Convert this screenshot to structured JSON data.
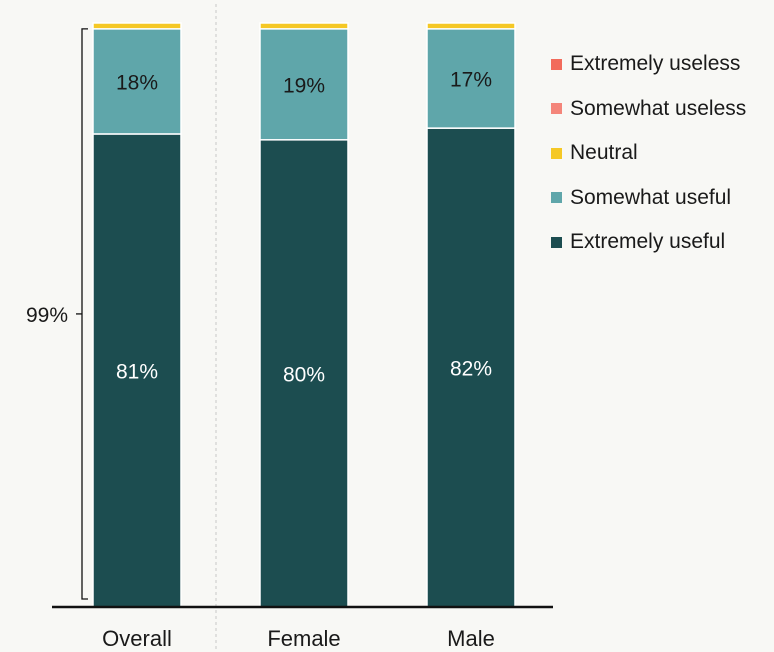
{
  "chart_data": {
    "type": "bar",
    "stacked": true,
    "orientation": "vertical",
    "categories": [
      "Overall",
      "Female",
      "Male"
    ],
    "ylim": [
      0,
      100
    ],
    "grid": false,
    "legend_position": "top-right",
    "series": [
      {
        "name": "Extremely useless",
        "color": "#f26b5b",
        "values": [
          0,
          0,
          0
        ],
        "labels": [
          "",
          "",
          ""
        ]
      },
      {
        "name": "Somewhat useless",
        "color": "#f4857a",
        "values": [
          0,
          0,
          0
        ],
        "labels": [
          "",
          "",
          ""
        ]
      },
      {
        "name": "Neutral",
        "color": "#f5c825",
        "values": [
          1,
          1,
          1
        ],
        "labels": [
          "",
          "",
          ""
        ]
      },
      {
        "name": "Somewhat useful",
        "color": "#5fa6aa",
        "values": [
          18,
          19,
          17
        ],
        "labels": [
          "18%",
          "19%",
          "17%"
        ]
      },
      {
        "name": "Extremely useful",
        "color": "#1c4d50",
        "values": [
          81,
          80,
          82
        ],
        "labels": [
          "81%",
          "80%",
          "82%"
        ]
      }
    ],
    "bracket": {
      "label": "99%",
      "value": 99
    }
  }
}
